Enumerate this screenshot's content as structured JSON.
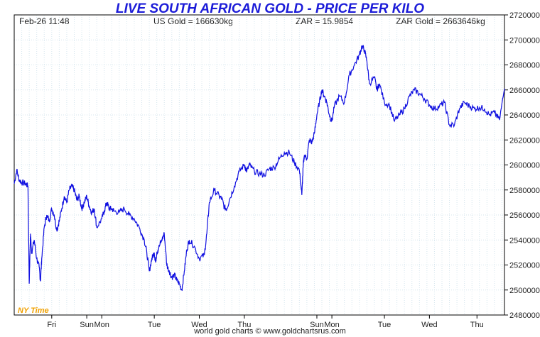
{
  "header": {
    "date_time": "Feb-26  11:48",
    "us_gold": "US Gold = 166630kg",
    "zar_rate": "ZAR = 15.9854",
    "zar_gold": "ZAR Gold = 2663646kg"
  },
  "footer": "world gold charts © www.goldchartsrus.com",
  "timezone_label": "NY Time",
  "colors": {
    "line": "#1010e0",
    "title": "#1c1cd8",
    "grid": "#d6e6ee",
    "timezone": "#f0a000"
  },
  "chart_data": {
    "type": "line",
    "title": "LIVE SOUTH AFRICAN GOLD - PRICE PER KILO",
    "xlabel": "",
    "ylabel": "",
    "ylim": [
      2480000,
      2720000
    ],
    "y_ticks": [
      2480000,
      2500000,
      2520000,
      2540000,
      2560000,
      2580000,
      2600000,
      2620000,
      2640000,
      2660000,
      2680000,
      2700000,
      2720000
    ],
    "x_ticks": [
      "Fri",
      "Sun",
      "Mon",
      "Tue",
      "Wed",
      "Thu",
      "Sun",
      "Mon",
      "Tue",
      "Wed",
      "Thu"
    ],
    "x_tick_pos": [
      1.5,
      2.9,
      3.5,
      5.6,
      7.4,
      9.2,
      12.1,
      12.7,
      14.8,
      16.6,
      18.5
    ],
    "xlim": [
      0,
      19.6
    ],
    "grid": true,
    "series": [
      {
        "x": [
          0.0,
          0.1,
          0.2,
          0.3,
          0.45,
          0.55,
          0.6,
          0.65,
          0.7,
          0.8,
          0.9,
          1.0,
          1.05,
          1.1,
          1.2,
          1.3,
          1.4,
          1.5,
          1.6,
          1.7,
          1.8,
          1.9,
          2.0,
          2.1,
          2.2,
          2.3,
          2.4,
          2.5,
          2.6,
          2.7,
          2.8,
          2.9,
          3.0,
          3.1,
          3.2,
          3.3,
          3.5,
          3.6,
          3.7,
          3.8,
          3.9,
          4.0,
          4.2,
          4.4,
          4.6,
          4.8,
          5.0,
          5.2,
          5.3,
          5.4,
          5.5,
          5.6,
          5.65,
          5.7,
          5.8,
          5.9,
          6.0,
          6.1,
          6.2,
          6.3,
          6.4,
          6.5,
          6.6,
          6.7,
          6.8,
          6.9,
          7.0,
          7.2,
          7.4,
          7.6,
          7.7,
          7.8,
          8.0,
          8.2,
          8.3,
          8.4,
          8.5,
          8.6,
          8.8,
          9.0,
          9.2,
          9.3,
          9.4,
          9.6,
          9.8,
          10.0,
          10.2,
          10.4,
          10.6,
          10.8,
          11.0,
          11.2,
          11.4,
          11.5,
          11.55,
          11.6,
          11.7,
          11.8,
          11.9,
          12.0,
          12.1,
          12.2,
          12.3,
          12.4,
          12.5,
          12.6,
          12.7,
          12.8,
          13.0,
          13.2,
          13.4,
          13.6,
          13.8,
          13.9,
          14.0,
          14.1,
          14.2,
          14.4,
          14.5,
          14.6,
          14.8,
          15.0,
          15.2,
          15.4,
          15.6,
          15.8,
          16.0,
          16.2,
          16.4,
          16.6,
          16.8,
          17.0,
          17.2,
          17.4,
          17.6,
          17.8,
          18.0,
          18.2,
          18.4,
          18.6,
          18.8,
          19.0,
          19.2,
          19.4,
          19.6
        ],
        "values": [
          2585000,
          2596000,
          2588000,
          2586000,
          2585000,
          2583000,
          2505000,
          2545000,
          2530000,
          2540000,
          2525000,
          2518000,
          2507000,
          2525000,
          2550000,
          2560000,
          2555000,
          2565000,
          2560000,
          2548000,
          2555000,
          2565000,
          2575000,
          2570000,
          2580000,
          2583000,
          2580000,
          2572000,
          2575000,
          2565000,
          2570000,
          2575000,
          2567000,
          2562000,
          2565000,
          2550000,
          2557000,
          2563000,
          2570000,
          2565000,
          2565000,
          2563000,
          2562000,
          2565000,
          2560000,
          2557000,
          2550000,
          2540000,
          2530000,
          2515000,
          2525000,
          2530000,
          2522000,
          2530000,
          2535000,
          2540000,
          2545000,
          2520000,
          2515000,
          2510000,
          2512000,
          2508000,
          2505000,
          2500000,
          2515000,
          2532000,
          2540000,
          2535000,
          2525000,
          2528000,
          2545000,
          2570000,
          2580000,
          2575000,
          2573000,
          2566000,
          2565000,
          2572000,
          2583000,
          2595000,
          2600000,
          2595000,
          2600000,
          2595000,
          2593000,
          2592000,
          2597000,
          2598000,
          2605000,
          2610000,
          2610000,
          2602000,
          2596000,
          2576000,
          2598000,
          2608000,
          2605000,
          2620000,
          2618000,
          2625000,
          2640000,
          2650000,
          2660000,
          2655000,
          2650000,
          2640000,
          2635000,
          2647000,
          2655000,
          2650000,
          2672000,
          2680000,
          2688000,
          2695000,
          2692000,
          2683000,
          2665000,
          2670000,
          2660000,
          2665000,
          2650000,
          2648000,
          2635000,
          2640000,
          2645000,
          2655000,
          2660000,
          2657000,
          2653000,
          2648000,
          2645000,
          2647000,
          2650000,
          2632000,
          2632000,
          2645000,
          2650000,
          2647000,
          2645000,
          2646000,
          2645000,
          2640000,
          2642000,
          2636000,
          2661000
        ]
      }
    ]
  }
}
